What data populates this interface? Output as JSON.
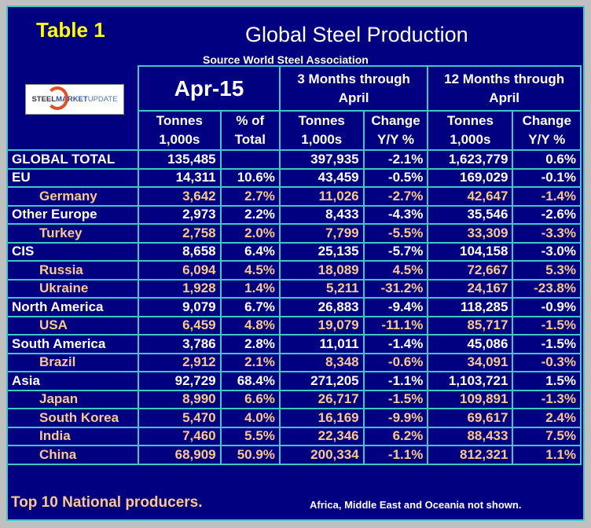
{
  "table_label": "Table 1",
  "title": "Global Steel Production",
  "source": "Source World Steel Association",
  "logo_text": {
    "a": "STEEL ",
    "b": "MARKET ",
    "c": "UPDATE"
  },
  "group_headers": [
    "Apr-15",
    "3 Months through April",
    "12 Months through April"
  ],
  "group_headers_lines": [
    [
      "Apr-15"
    ],
    [
      "3 Months through",
      "April"
    ],
    [
      "12 Months through",
      "April"
    ]
  ],
  "col_headers": [
    [
      "Tonnes",
      "1,000s"
    ],
    [
      "% of",
      "Total"
    ],
    [
      "Tonnes",
      "1,000s"
    ],
    [
      "Change",
      "Y/Y %"
    ],
    [
      "Tonnes",
      "1,000s"
    ],
    [
      "Change",
      "Y/Y %"
    ]
  ],
  "rows": [
    {
      "name": "GLOBAL TOTAL",
      "sub": false,
      "v": [
        "135,485",
        "",
        "397,935",
        "-2.1%",
        "1,623,779",
        "0.6%"
      ]
    },
    {
      "name": "EU",
      "sub": false,
      "v": [
        "14,311",
        "10.6%",
        "43,459",
        "-0.5%",
        "169,029",
        "-0.1%"
      ]
    },
    {
      "name": "Germany",
      "sub": true,
      "v": [
        "3,642",
        "2.7%",
        "11,026",
        "-2.7%",
        "42,647",
        "-1.4%"
      ]
    },
    {
      "name": "Other Europe",
      "sub": false,
      "v": [
        "2,973",
        "2.2%",
        "8,433",
        "-4.3%",
        "35,546",
        "-2.6%"
      ]
    },
    {
      "name": "Turkey",
      "sub": true,
      "v": [
        "2,758",
        "2.0%",
        "7,799",
        "-5.5%",
        "33,309",
        "-3.3%"
      ]
    },
    {
      "name": "CIS",
      "sub": false,
      "v": [
        "8,658",
        "6.4%",
        "25,135",
        "-5.7%",
        "104,158",
        "-3.0%"
      ]
    },
    {
      "name": "Russia",
      "sub": true,
      "v": [
        "6,094",
        "4.5%",
        "18,089",
        "4.5%",
        "72,667",
        "5.3%"
      ]
    },
    {
      "name": "Ukraine",
      "sub": true,
      "v": [
        "1,928",
        "1.4%",
        "5,211",
        "-31.2%",
        "24,167",
        "-23.8%"
      ]
    },
    {
      "name": "North America",
      "sub": false,
      "v": [
        "9,079",
        "6.7%",
        "26,883",
        "-9.4%",
        "118,285",
        "-0.9%"
      ]
    },
    {
      "name": "USA",
      "sub": true,
      "v": [
        "6,459",
        "4.8%",
        "19,079",
        "-11.1%",
        "85,717",
        "-1.5%"
      ]
    },
    {
      "name": "South America",
      "sub": false,
      "v": [
        "3,786",
        "2.8%",
        "11,011",
        "-1.4%",
        "45,086",
        "-1.5%"
      ]
    },
    {
      "name": "Brazil",
      "sub": true,
      "v": [
        "2,912",
        "2.1%",
        "8,348",
        "-0.6%",
        "34,091",
        "-0.3%"
      ]
    },
    {
      "name": "Asia",
      "sub": false,
      "v": [
        "92,729",
        "68.4%",
        "271,205",
        "-1.1%",
        "1,103,721",
        "1.5%"
      ]
    },
    {
      "name": "Japan",
      "sub": true,
      "v": [
        "8,990",
        "6.6%",
        "26,717",
        "-1.5%",
        "109,891",
        "-1.3%"
      ]
    },
    {
      "name": "South Korea",
      "sub": true,
      "v": [
        "5,470",
        "4.0%",
        "16,169",
        "-9.9%",
        "69,617",
        "2.4%"
      ]
    },
    {
      "name": "India",
      "sub": true,
      "v": [
        "7,460",
        "5.5%",
        "22,346",
        "6.2%",
        "88,433",
        "7.5%"
      ]
    },
    {
      "name": "China",
      "sub": true,
      "v": [
        "68,909",
        "50.9%",
        "200,334",
        "-1.1%",
        "812,321",
        "1.1%"
      ]
    }
  ],
  "footer": "Top 10 National producers.",
  "note": "Africa, Middle East and Oceania not shown.",
  "colors": {
    "bg": "#000080",
    "grid": "#40c8c8",
    "title": "#ffff00",
    "sub": "#fcc98a"
  }
}
